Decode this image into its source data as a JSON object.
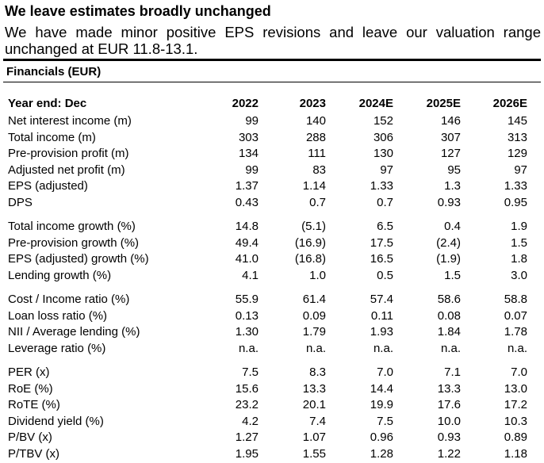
{
  "header": {
    "title": "We leave estimates broadly unchanged",
    "subtitle": "We have made minor positive EPS revisions and leave our valuation range unchanged at EUR 11.8-13.1."
  },
  "table": {
    "caption": "Financials (EUR)",
    "columns": [
      "Year end: Dec",
      "2022",
      "2023",
      "2024E",
      "2025E",
      "2026E"
    ],
    "groups": [
      [
        [
          "Net interest income (m)",
          "99",
          "140",
          "152",
          "146",
          "145"
        ],
        [
          "Total income (m)",
          "303",
          "288",
          "306",
          "307",
          "313"
        ],
        [
          "Pre-provision profit (m)",
          "134",
          "111",
          "130",
          "127",
          "129"
        ],
        [
          "Adjusted net profit (m)",
          "99",
          "83",
          "97",
          "95",
          "97"
        ],
        [
          "EPS (adjusted)",
          "1.37",
          "1.14",
          "1.33",
          "1.3",
          "1.33"
        ],
        [
          "DPS",
          "0.43",
          "0.7",
          "0.7",
          "0.93",
          "0.95"
        ]
      ],
      [
        [
          "Total income growth (%)",
          "14.8",
          "(5.1)",
          "6.5",
          "0.4",
          "1.9"
        ],
        [
          "Pre-provision growth (%)",
          "49.4",
          "(16.9)",
          "17.5",
          "(2.4)",
          "1.5"
        ],
        [
          "EPS (adjusted) growth (%)",
          "41.0",
          "(16.8)",
          "16.5",
          "(1.9)",
          "1.8"
        ],
        [
          "Lending growth (%)",
          "4.1",
          "1.0",
          "0.5",
          "1.5",
          "3.0"
        ]
      ],
      [
        [
          "Cost / Income ratio (%)",
          "55.9",
          "61.4",
          "57.4",
          "58.6",
          "58.8"
        ],
        [
          "Loan loss ratio (%)",
          "0.13",
          "0.09",
          "0.11",
          "0.08",
          "0.07"
        ],
        [
          "NII / Average lending (%)",
          "1.30",
          "1.79",
          "1.93",
          "1.84",
          "1.78"
        ],
        [
          "Leverage ratio (%)",
          "n.a.",
          "n.a.",
          "n.a.",
          "n.a.",
          "n.a."
        ]
      ],
      [
        [
          "PER (x)",
          "7.5",
          "8.3",
          "7.0",
          "7.1",
          "7.0"
        ],
        [
          "RoE (%)",
          "15.6",
          "13.3",
          "14.4",
          "13.3",
          "13.0"
        ],
        [
          "RoTE (%)",
          "23.2",
          "20.1",
          "19.9",
          "17.6",
          "17.2"
        ],
        [
          "Dividend yield (%)",
          "4.2",
          "7.4",
          "7.5",
          "10.0",
          "10.3"
        ],
        [
          "P/BV (x)",
          "1.27",
          "1.07",
          "0.96",
          "0.93",
          "0.89"
        ],
        [
          "P/TBV (x)",
          "1.95",
          "1.55",
          "1.28",
          "1.22",
          "1.18"
        ]
      ]
    ]
  }
}
